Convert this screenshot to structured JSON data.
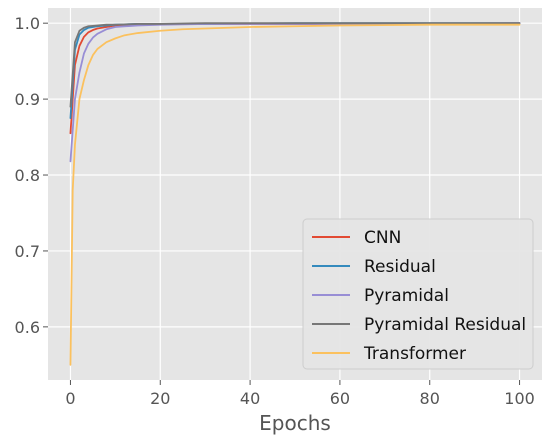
{
  "chart_data": {
    "type": "line",
    "title": "",
    "xlabel": "Epochs",
    "ylabel": "",
    "xlim": [
      -5,
      105
    ],
    "ylim": [
      0.53,
      1.02
    ],
    "xticks": [
      0,
      20,
      40,
      60,
      80,
      100
    ],
    "yticks": [
      0.6,
      0.7,
      0.8,
      0.9,
      1.0
    ],
    "xtick_labels": [
      "0",
      "20",
      "40",
      "60",
      "80",
      "100"
    ],
    "ytick_labels": [
      "0.6",
      "0.7",
      "0.8",
      "0.9",
      "1.0"
    ],
    "grid": true,
    "background": "#e5e5e5",
    "legend_position": "lower-right",
    "series": [
      {
        "name": "CNN",
        "color": "#e24a33",
        "x": [
          0,
          1,
          2,
          3,
          4,
          5,
          6,
          8,
          10,
          15,
          20,
          30,
          50,
          100
        ],
        "y": [
          0.855,
          0.945,
          0.97,
          0.982,
          0.988,
          0.991,
          0.993,
          0.995,
          0.997,
          0.998,
          0.999,
          0.999,
          0.999,
          1.0
        ]
      },
      {
        "name": "Residual",
        "color": "#348abd",
        "x": [
          0,
          1,
          2,
          3,
          4,
          6,
          8,
          10,
          15,
          20,
          30,
          50,
          100
        ],
        "y": [
          0.875,
          0.965,
          0.985,
          0.991,
          0.994,
          0.996,
          0.997,
          0.998,
          0.999,
          0.999,
          0.999,
          1.0,
          1.0
        ]
      },
      {
        "name": "Pyramidal",
        "color": "#988ed5",
        "x": [
          0,
          1,
          2,
          3,
          4,
          5,
          6,
          8,
          10,
          15,
          20,
          30,
          50,
          100
        ],
        "y": [
          0.818,
          0.9,
          0.935,
          0.96,
          0.973,
          0.981,
          0.986,
          0.992,
          0.995,
          0.997,
          0.998,
          0.999,
          0.999,
          1.0
        ]
      },
      {
        "name": "Pyramidal Residual",
        "color": "#777777",
        "x": [
          0,
          1,
          2,
          3,
          4,
          6,
          8,
          10,
          15,
          20,
          30,
          50,
          100
        ],
        "y": [
          0.89,
          0.975,
          0.99,
          0.994,
          0.996,
          0.997,
          0.998,
          0.998,
          0.999,
          0.999,
          1.0,
          1.0,
          1.0
        ]
      },
      {
        "name": "Transformer",
        "color": "#fbc15e",
        "x": [
          0,
          0.5,
          1,
          2,
          3,
          4,
          5,
          6,
          8,
          10,
          12,
          15,
          20,
          25,
          30,
          40,
          50,
          60,
          80,
          100
        ],
        "y": [
          0.55,
          0.78,
          0.84,
          0.9,
          0.925,
          0.945,
          0.958,
          0.966,
          0.975,
          0.98,
          0.984,
          0.987,
          0.99,
          0.992,
          0.993,
          0.995,
          0.996,
          0.997,
          0.998,
          0.998
        ]
      }
    ]
  }
}
